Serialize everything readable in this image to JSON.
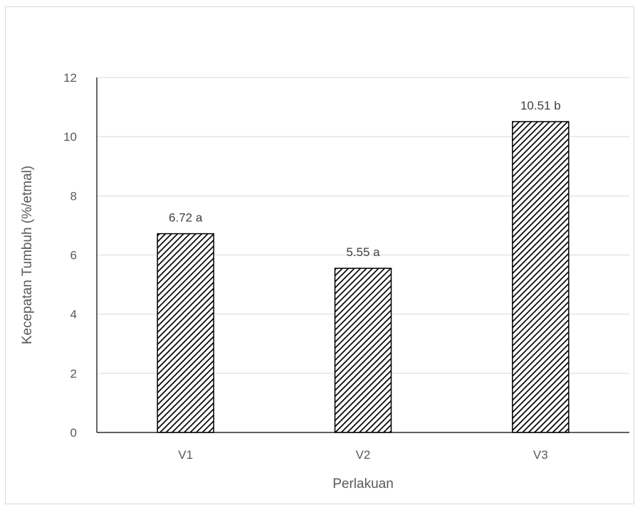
{
  "chart_data": {
    "type": "bar",
    "categories": [
      "V1",
      "V2",
      "V3"
    ],
    "values": [
      6.72,
      5.55,
      10.51
    ],
    "data_labels": [
      "6.72 a",
      "5.55 a",
      "10.51 b"
    ],
    "title": "",
    "xlabel": "Perlakuan",
    "ylabel": "Kecepatan Tumbuh (%/etmal)",
    "ylim": [
      0,
      12
    ],
    "yticks": [
      0,
      2,
      4,
      6,
      8,
      10,
      12
    ],
    "grid": true,
    "legend": "none",
    "bar_fill": "diagonal-hatch",
    "colors": {
      "bar_stroke": "#000000",
      "hatch": "#000000",
      "grid": "#d9d9d9",
      "axis": "#000000"
    }
  }
}
